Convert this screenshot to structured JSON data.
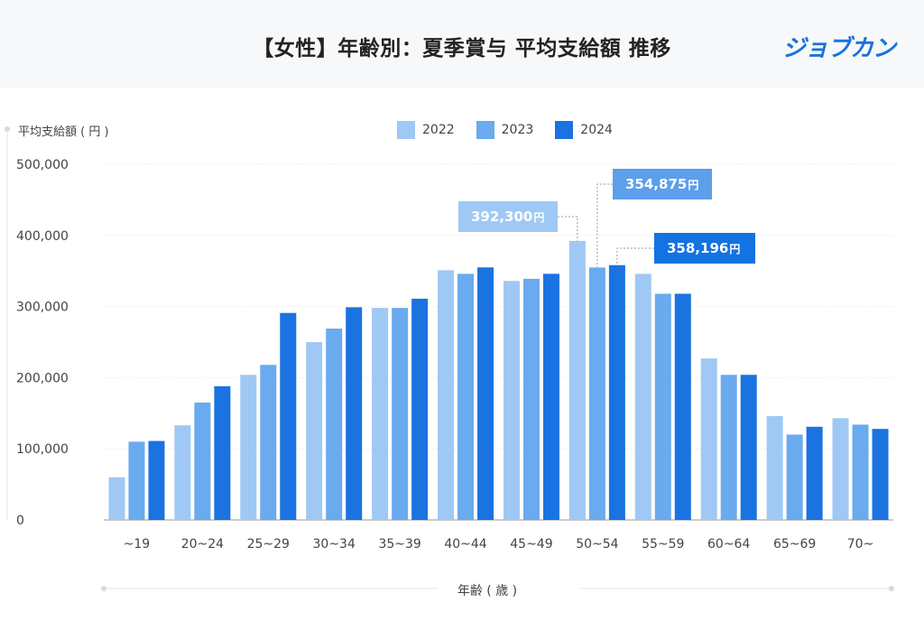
{
  "header": {
    "title": "【女性】年齢別：夏季賞与 平均支給額 推移",
    "logo": "ジョブカン"
  },
  "colors": {
    "2022": "#9fc8f5",
    "2023": "#6aaaee",
    "2024": "#1a73e0"
  },
  "chart_data": {
    "type": "bar",
    "title": "【女性】年齢別：夏季賞与 平均支給額 推移",
    "ylabel": "平均支給額 ( 円 )",
    "xlabel": "年齢 ( 歳 )",
    "ylim": [
      0,
      500000
    ],
    "yticks": [
      0,
      100000,
      200000,
      300000,
      400000,
      500000
    ],
    "ytick_labels": [
      "0",
      "100,000",
      "200,000",
      "300,000",
      "400,000",
      "500,000"
    ],
    "categories": [
      "~19",
      "20~24",
      "25~29",
      "30~34",
      "35~39",
      "40~44",
      "45~49",
      "50~54",
      "55~59",
      "60~64",
      "65~69",
      "70~"
    ],
    "series": [
      {
        "name": "2022",
        "values": [
          60000,
          133000,
          204000,
          250000,
          298000,
          351000,
          336000,
          392300,
          346000,
          227000,
          146000,
          143000
        ]
      },
      {
        "name": "2023",
        "values": [
          110000,
          165000,
          218000,
          269000,
          298000,
          346000,
          339000,
          354875,
          318000,
          204000,
          120000,
          134000
        ]
      },
      {
        "name": "2024",
        "values": [
          111000,
          188000,
          291000,
          299000,
          311000,
          355000,
          346000,
          358196,
          318000,
          204000,
          131000,
          128000
        ]
      }
    ],
    "legend_position": "top-center",
    "grid": true,
    "annotations": [
      {
        "label": "392,300",
        "unit": "円",
        "series": "2022",
        "category": "50~54"
      },
      {
        "label": "354,875",
        "unit": "円",
        "series": "2023",
        "category": "50~54"
      },
      {
        "label": "358,196",
        "unit": "円",
        "series": "2024",
        "category": "50~54"
      }
    ]
  }
}
